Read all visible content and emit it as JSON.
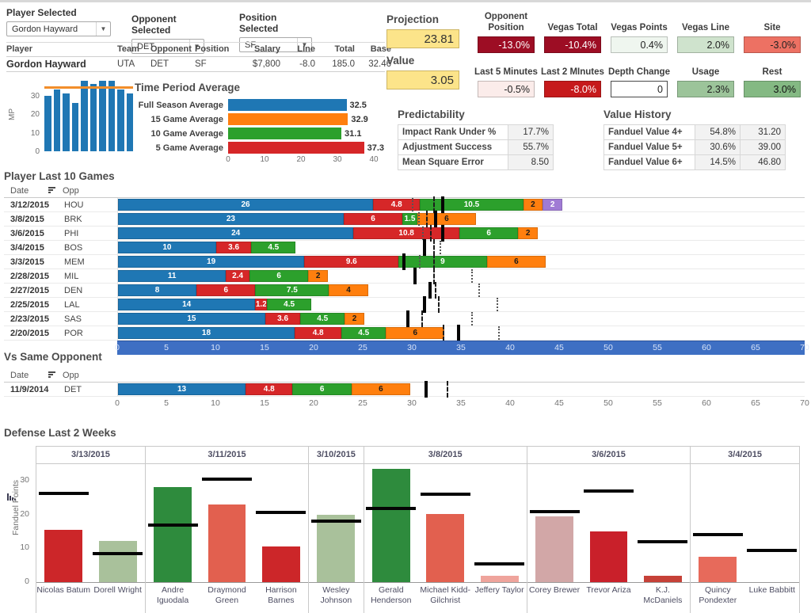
{
  "filters": {
    "player": {
      "label": "Player Selected",
      "value": "Gordon Hayward"
    },
    "opponent": {
      "label": "Opponent Selected",
      "value": "DET"
    },
    "position": {
      "label": "Position Selected",
      "value": "SF"
    }
  },
  "player_table": {
    "headers": [
      "Player",
      "Team",
      "Opponent",
      "Position",
      "Salary",
      "LIne",
      "Total",
      "Base"
    ],
    "row": [
      "Gordon Hayward",
      "UTA",
      "DET",
      "SF",
      "$7,800",
      "-8.0",
      "185.0",
      "32.46"
    ]
  },
  "projection": {
    "label": "Projection",
    "value": "23.81"
  },
  "value_box": {
    "label": "Value",
    "value": "3.05"
  },
  "metrics": {
    "row1": [
      {
        "label": "Opponent Position",
        "value": "-13.0%",
        "bg": "#9d0d24",
        "fg": "#ffffff"
      },
      {
        "label": "Vegas Total",
        "value": "-10.4%",
        "bg": "#9d0d24",
        "fg": "#ffffff"
      },
      {
        "label": "Vegas Points",
        "value": "0.4%",
        "bg": "#eff6ef",
        "fg": "#222222"
      },
      {
        "label": "Vegas Line",
        "value": "2.0%",
        "bg": "#cfe3cd",
        "fg": "#222222"
      },
      {
        "label": "Site",
        "value": "-3.0%",
        "bg": "#ed7163",
        "fg": "#222222"
      }
    ],
    "row2": [
      {
        "label": "Last 5 Minutes",
        "value": "-0.5%",
        "bg": "#fbecea",
        "fg": "#222222"
      },
      {
        "label": "Last 2 MInutes",
        "value": "-8.0%",
        "bg": "#c61a1c",
        "fg": "#ffffff"
      },
      {
        "label": "Depth Change",
        "value": "0",
        "bg": "#ffffff",
        "fg": "#222222",
        "input": true
      },
      {
        "label": "Usage",
        "value": "2.3%",
        "bg": "#9cc49a",
        "fg": "#222222"
      },
      {
        "label": "Rest",
        "value": "3.0%",
        "bg": "#84b983",
        "fg": "#111111"
      }
    ]
  },
  "predictability": {
    "title": "Predictability",
    "rows": [
      [
        "Impact Rank Under %",
        "17.7%"
      ],
      [
        "Adjustment Success",
        "55.7%"
      ],
      [
        "Mean Square Error",
        "8.50"
      ]
    ]
  },
  "value_history": {
    "title": "Value History",
    "rows": [
      [
        "Fanduel Value 4+",
        "54.8%",
        "31.20"
      ],
      [
        "Fanduel Value 5+",
        "30.6%",
        "39.00"
      ],
      [
        "Fanduel Value 6+",
        "14.5%",
        "46.80"
      ]
    ]
  },
  "sections": {
    "date_col": "Date",
    "opp_col": "Opp"
  },
  "palette": {
    "blue": "#1f77b4",
    "red": "#d62728",
    "green": "#2ca02c",
    "orange": "#ff7f0e",
    "purple": "#a07bd4"
  },
  "chart_data": [
    {
      "id": "minutes_last_10",
      "type": "bar",
      "ylabel": "MP",
      "yticks": [
        0,
        10,
        20,
        30
      ],
      "ylim": [
        0,
        40
      ],
      "values": [
        30,
        33,
        31,
        26,
        38,
        36,
        38,
        38,
        33,
        31
      ],
      "ref_line": 33.5,
      "bar_color": "#1f77b4",
      "ref_color": "#f28e2b"
    },
    {
      "id": "time_period_average",
      "type": "bar",
      "orientation": "horizontal",
      "title": "Time Period Average",
      "categories": [
        "Full Season Average",
        "15 Game Average",
        "10 Game Average",
        "5 Game Average"
      ],
      "values": [
        32.5,
        32.9,
        31.1,
        37.3
      ],
      "colors": [
        "#1f77b4",
        "#ff7f0e",
        "#2ca02c",
        "#d62728"
      ],
      "xticks": [
        0,
        10,
        20,
        30,
        40
      ],
      "xlim": [
        0,
        40
      ]
    },
    {
      "id": "player_last_10_games",
      "type": "stacked_bar_horizontal",
      "title": "Player Last 10 Games",
      "xlim": [
        0,
        70
      ],
      "xticks": [
        0,
        5,
        10,
        15,
        20,
        25,
        30,
        35,
        40,
        45,
        50,
        55,
        60,
        65,
        70
      ],
      "rows": [
        {
          "date": "3/12/2015",
          "opp": "HOU",
          "segments": [
            {
              "color": "blue",
              "value": 26
            },
            {
              "color": "red",
              "value": 4.8
            },
            {
              "color": "green",
              "value": 10.5
            },
            {
              "color": "orange",
              "value": 2
            },
            {
              "color": "purple",
              "value": 2
            }
          ],
          "markers": {
            "dotted": 30.0,
            "dashed": 32.2,
            "solid": 33.0
          }
        },
        {
          "date": "3/8/2015",
          "opp": "BRK",
          "segments": [
            {
              "color": "blue",
              "value": 23
            },
            {
              "color": "red",
              "value": 6
            },
            {
              "color": "green",
              "value": 1.5
            },
            {
              "color": "orange",
              "value": 6
            }
          ],
          "markers": {
            "dotted": 30.7,
            "dashed": 31.5,
            "solid": 32.3
          }
        },
        {
          "date": "3/6/2015",
          "opp": "PHI",
          "segments": [
            {
              "color": "blue",
              "value": 24
            },
            {
              "color": "red",
              "value": 10.8
            },
            {
              "color": "green",
              "value": 6
            },
            {
              "color": "orange",
              "value": 2
            }
          ],
          "markers": {
            "dotted": 31.1,
            "dashed": 31.9,
            "solid": 33.0
          }
        },
        {
          "date": "3/4/2015",
          "opp": "BOS",
          "segments": [
            {
              "color": "blue",
              "value": 10
            },
            {
              "color": "red",
              "value": 3.6
            },
            {
              "color": "green",
              "value": 4.5
            }
          ],
          "markers": {
            "solid": 31.2,
            "dashed": 32.2,
            "dotted": 32.9
          }
        },
        {
          "date": "3/3/2015",
          "opp": "MEM",
          "segments": [
            {
              "color": "blue",
              "value": 19
            },
            {
              "color": "red",
              "value": 9.6
            },
            {
              "color": "green",
              "value": 9
            },
            {
              "color": "orange",
              "value": 6
            }
          ],
          "markers": {
            "solid": 29.1,
            "dotted": 30.8,
            "dashed": 32.2
          }
        },
        {
          "date": "2/28/2015",
          "opp": "MIL",
          "segments": [
            {
              "color": "blue",
              "value": 11
            },
            {
              "color": "red",
              "value": 2.4
            },
            {
              "color": "green",
              "value": 6
            },
            {
              "color": "orange",
              "value": 2
            }
          ],
          "markers": {
            "solid": 30.2,
            "dashed": 32.2,
            "dotted": 36.1
          }
        },
        {
          "date": "2/27/2015",
          "opp": "DEN",
          "segments": [
            {
              "color": "blue",
              "value": 8
            },
            {
              "color": "red",
              "value": 6
            },
            {
              "color": "green",
              "value": 7.5
            },
            {
              "color": "orange",
              "value": 4
            }
          ],
          "markers": {
            "solid": 31.7,
            "dashed": 32.4,
            "dotted": 36.8
          }
        },
        {
          "date": "2/25/2015",
          "opp": "LAL",
          "segments": [
            {
              "color": "blue",
              "value": 14
            },
            {
              "color": "red",
              "value": 1.2
            },
            {
              "color": "green",
              "value": 4.5
            }
          ],
          "markers": {
            "solid": 31.2,
            "dashed": 32.7,
            "dotted": 38.7
          }
        },
        {
          "date": "2/23/2015",
          "opp": "SAS",
          "segments": [
            {
              "color": "blue",
              "value": 15
            },
            {
              "color": "red",
              "value": 3.6
            },
            {
              "color": "green",
              "value": 4.5
            },
            {
              "color": "orange",
              "value": 2
            }
          ],
          "markers": {
            "solid": 29.5,
            "dashed": 31.0,
            "dotted": 36.1
          }
        },
        {
          "date": "2/20/2015",
          "opp": "POR",
          "segments": [
            {
              "color": "blue",
              "value": 18
            },
            {
              "color": "red",
              "value": 4.8
            },
            {
              "color": "green",
              "value": 4.5
            },
            {
              "color": "orange",
              "value": 6
            }
          ],
          "markers": {
            "dashed": 33.2,
            "solid": 34.6,
            "dotted": 38.8
          }
        }
      ]
    },
    {
      "id": "vs_same_opponent",
      "type": "stacked_bar_horizontal",
      "title": "Vs Same Opponent",
      "xlim": [
        0,
        70
      ],
      "xticks": [
        0,
        5,
        10,
        15,
        20,
        25,
        30,
        35,
        40,
        45,
        50,
        55,
        60,
        65,
        70
      ],
      "rows": [
        {
          "date": "11/9/2014",
          "opp": "DET",
          "segments": [
            {
              "color": "blue",
              "value": 13
            },
            {
              "color": "red",
              "value": 4.8
            },
            {
              "color": "green",
              "value": 6
            },
            {
              "color": "orange",
              "value": 6
            }
          ],
          "markers": {
            "solid": 31.3,
            "dashed": 33.6
          }
        }
      ]
    },
    {
      "id": "defense_last_2_weeks",
      "type": "grouped_bar",
      "title": "Defense Last 2 Weeks",
      "ylabel": "Fanduel Points",
      "yticks": [
        0,
        10,
        20,
        30
      ],
      "ylim": [
        0,
        35
      ],
      "groups": [
        {
          "date": "3/13/2015",
          "players": [
            {
              "name": "Nicolas Batum",
              "value": 15.5,
              "line": 26.3,
              "color": "#cc2629"
            },
            {
              "name": "Dorell Wright",
              "value": 12.3,
              "line": 8.5,
              "color": "#a9c19b"
            }
          ]
        },
        {
          "date": "3/11/2015",
          "players": [
            {
              "name": "Andre Iguodala",
              "value": 28.3,
              "line": 17.0,
              "color": "#2e8b3d"
            },
            {
              "name": "Draymond Green",
              "value": 23.0,
              "line": 30.5,
              "color": "#e2604f"
            },
            {
              "name": "Harrison Barnes",
              "value": 10.6,
              "line": 20.7,
              "color": "#cc2629"
            }
          ]
        },
        {
          "date": "3/10/2015",
          "players": [
            {
              "name": "Wesley Johnson",
              "value": 20.0,
              "line": 18.0,
              "color": "#a9c19b"
            }
          ]
        },
        {
          "date": "3/8/2015",
          "players": [
            {
              "name": "Gerald Henderson",
              "value": 33.5,
              "line": 21.8,
              "color": "#2e8b3d"
            },
            {
              "name": "Michael Kidd-Gilchrist",
              "value": 20.3,
              "line": 26.0,
              "color": "#e2604f"
            },
            {
              "name": "Jeffery Taylor",
              "value": 1.8,
              "line": 5.5,
              "color": "#efa49c"
            }
          ]
        },
        {
          "date": "3/6/2015",
          "players": [
            {
              "name": "Corey Brewer",
              "value": 19.5,
              "line": 21.0,
              "color": "#d2a7a7"
            },
            {
              "name": "Trevor Ariza",
              "value": 15.0,
              "line": 27.0,
              "color": "#c9202a"
            },
            {
              "name": "K.J. McDaniels",
              "value": 1.8,
              "line": 12.0,
              "color": "#c64138"
            }
          ]
        },
        {
          "date": "3/4/2015",
          "players": [
            {
              "name": "Quincy Pondexter",
              "value": 7.5,
              "line": 14.0,
              "color": "#e76a5b"
            },
            {
              "name": "Luke Babbitt",
              "value": 0,
              "line": 9.5,
              "color": "#cccccc"
            }
          ]
        }
      ]
    }
  ]
}
